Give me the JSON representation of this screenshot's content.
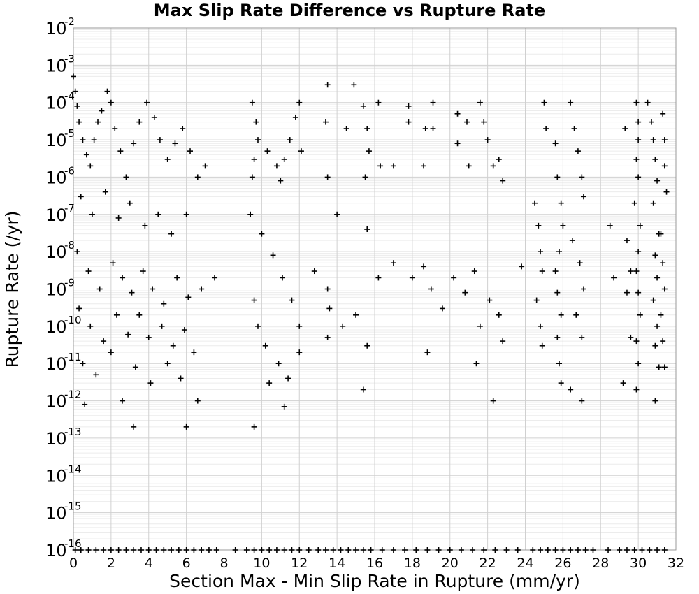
{
  "chart_data": {
    "type": "scatter",
    "title": "Max Slip Rate Difference vs Rupture Rate",
    "xlabel": "Section Max - Min Slip Rate in Rupture (mm/yr)",
    "ylabel": "Rupture Rate (/yr)",
    "xlim": [
      0,
      32
    ],
    "ylim": [
      1e-16,
      0.01
    ],
    "y_scale": "log",
    "grid": true,
    "marker": "plus",
    "marker_color": "#000000",
    "x_ticks": [
      "0",
      "2",
      "4",
      "6",
      "8",
      "10",
      "12",
      "14",
      "16",
      "18",
      "20",
      "22",
      "24",
      "26",
      "28",
      "30",
      "32"
    ],
    "y_ticks": [
      {
        "base": "10",
        "exp": "-2"
      },
      {
        "base": "10",
        "exp": "-3"
      },
      {
        "base": "10",
        "exp": "-4"
      },
      {
        "base": "10",
        "exp": "-5"
      },
      {
        "base": "10",
        "exp": "-6"
      },
      {
        "base": "10",
        "exp": "-7"
      },
      {
        "base": "10",
        "exp": "-8"
      },
      {
        "base": "10",
        "exp": "-9"
      },
      {
        "base": "10",
        "exp": "-10"
      },
      {
        "base": "10",
        "exp": "-11"
      },
      {
        "base": "10",
        "exp": "-12"
      },
      {
        "base": "10",
        "exp": "-13"
      },
      {
        "base": "10",
        "exp": "-14"
      },
      {
        "base": "10",
        "exp": "-15"
      },
      {
        "base": "10",
        "exp": "-16"
      }
    ],
    "series": [
      {
        "points": [
          [
            0.0,
            0.0005
          ],
          [
            0.1,
            0.0002
          ],
          [
            0.2,
            8e-05
          ],
          [
            0.3,
            3e-05
          ],
          [
            0.5,
            1e-05
          ],
          [
            0.7,
            4e-06
          ],
          [
            0.9,
            2e-06
          ],
          [
            1.1,
            1e-05
          ],
          [
            1.3,
            3e-05
          ],
          [
            1.5,
            6e-05
          ],
          [
            1.8,
            0.0002
          ],
          [
            2.0,
            0.0001
          ],
          [
            2.2,
            2e-05
          ],
          [
            2.5,
            5e-06
          ],
          [
            2.8,
            1e-06
          ],
          [
            3.2,
            8e-06
          ],
          [
            3.5,
            3e-05
          ],
          [
            3.9,
            0.0001
          ],
          [
            4.3,
            4e-05
          ],
          [
            4.6,
            1e-05
          ],
          [
            5.0,
            3e-06
          ],
          [
            5.4,
            8e-06
          ],
          [
            5.8,
            2e-05
          ],
          [
            6.2,
            5e-06
          ],
          [
            6.6,
            1e-06
          ],
          [
            7.0,
            2e-06
          ],
          [
            0.4,
            3e-07
          ],
          [
            1.0,
            1e-07
          ],
          [
            1.7,
            4e-07
          ],
          [
            2.4,
            8e-08
          ],
          [
            3.0,
            2e-07
          ],
          [
            3.8,
            5e-08
          ],
          [
            4.5,
            1e-07
          ],
          [
            5.2,
            3e-08
          ],
          [
            6.0,
            1e-07
          ],
          [
            0.2,
            1e-08
          ],
          [
            0.8,
            3e-09
          ],
          [
            1.4,
            1e-09
          ],
          [
            2.1,
            5e-09
          ],
          [
            2.6,
            2e-09
          ],
          [
            3.1,
            8e-10
          ],
          [
            3.7,
            3e-09
          ],
          [
            4.2,
            1e-09
          ],
          [
            4.8,
            4e-10
          ],
          [
            5.5,
            2e-09
          ],
          [
            6.1,
            6e-10
          ],
          [
            6.8,
            1e-09
          ],
          [
            7.5,
            2e-09
          ],
          [
            0.3,
            3e-10
          ],
          [
            0.9,
            1e-10
          ],
          [
            1.6,
            4e-11
          ],
          [
            2.3,
            2e-10
          ],
          [
            2.9,
            6e-11
          ],
          [
            3.5,
            2e-10
          ],
          [
            4.0,
            5e-11
          ],
          [
            4.7,
            1e-10
          ],
          [
            5.3,
            3e-11
          ],
          [
            5.9,
            8e-11
          ],
          [
            6.4,
            2e-11
          ],
          [
            0.5,
            1e-11
          ],
          [
            1.2,
            5e-12
          ],
          [
            2.0,
            2e-11
          ],
          [
            2.6,
            1e-12
          ],
          [
            3.3,
            8e-12
          ],
          [
            4.1,
            3e-12
          ],
          [
            5.0,
            1e-11
          ],
          [
            5.7,
            4e-12
          ],
          [
            6.6,
            1e-12
          ],
          [
            0.6,
            8e-13
          ],
          [
            3.2,
            2e-13
          ],
          [
            6.0,
            2e-13
          ],
          [
            9.6,
            2e-13
          ],
          [
            9.5,
            0.0001
          ],
          [
            9.7,
            3e-05
          ],
          [
            9.8,
            1e-05
          ],
          [
            9.6,
            3e-06
          ],
          [
            9.5,
            1e-06
          ],
          [
            10.3,
            5e-06
          ],
          [
            10.8,
            2e-06
          ],
          [
            11.0,
            8e-07
          ],
          [
            11.2,
            3e-06
          ],
          [
            11.5,
            1e-05
          ],
          [
            11.8,
            4e-05
          ],
          [
            12.0,
            0.0001
          ],
          [
            12.1,
            5e-06
          ],
          [
            9.4,
            1e-07
          ],
          [
            10.0,
            3e-08
          ],
          [
            10.6,
            8e-09
          ],
          [
            11.1,
            2e-09
          ],
          [
            11.6,
            5e-10
          ],
          [
            12.0,
            1e-10
          ],
          [
            9.6,
            5e-10
          ],
          [
            9.8,
            1e-10
          ],
          [
            10.2,
            3e-11
          ],
          [
            10.9,
            1e-11
          ],
          [
            11.4,
            4e-12
          ],
          [
            12.0,
            2e-11
          ],
          [
            11.2,
            7e-13
          ],
          [
            10.4,
            3e-12
          ],
          [
            13.5,
            0.0003
          ],
          [
            13.4,
            3e-05
          ],
          [
            13.5,
            1e-06
          ],
          [
            14.5,
            2e-05
          ],
          [
            14.9,
            0.0003
          ],
          [
            15.4,
            8e-05
          ],
          [
            15.6,
            2e-05
          ],
          [
            15.7,
            5e-06
          ],
          [
            15.5,
            1e-06
          ],
          [
            14.0,
            1e-07
          ],
          [
            15.6,
            4e-08
          ],
          [
            13.5,
            1e-09
          ],
          [
            13.6,
            3e-10
          ],
          [
            14.3,
            1e-10
          ],
          [
            15.0,
            2e-10
          ],
          [
            15.6,
            3e-11
          ],
          [
            15.4,
            2e-12
          ],
          [
            13.5,
            5e-11
          ],
          [
            12.8,
            3e-09
          ],
          [
            16.2,
            0.0001
          ],
          [
            16.3,
            2e-06
          ],
          [
            17.0,
            2e-06
          ],
          [
            17.8,
            8e-05
          ],
          [
            17.8,
            3e-05
          ],
          [
            18.6,
            2e-06
          ],
          [
            18.7,
            2e-05
          ],
          [
            19.1,
            0.0001
          ],
          [
            19.1,
            2e-05
          ],
          [
            20.4,
            5e-05
          ],
          [
            20.4,
            8e-06
          ],
          [
            20.9,
            3e-05
          ],
          [
            21.0,
            2e-06
          ],
          [
            21.6,
            0.0001
          ],
          [
            21.8,
            3e-05
          ],
          [
            22.0,
            1e-05
          ],
          [
            22.3,
            2e-06
          ],
          [
            22.6,
            3e-06
          ],
          [
            22.8,
            8e-07
          ],
          [
            16.2,
            2e-09
          ],
          [
            17.0,
            5e-09
          ],
          [
            18.0,
            2e-09
          ],
          [
            18.6,
            4e-09
          ],
          [
            19.0,
            1e-09
          ],
          [
            19.6,
            3e-10
          ],
          [
            20.2,
            2e-09
          ],
          [
            20.8,
            8e-10
          ],
          [
            21.3,
            3e-09
          ],
          [
            21.6,
            1e-10
          ],
          [
            22.1,
            5e-10
          ],
          [
            22.6,
            2e-10
          ],
          [
            22.8,
            4e-11
          ],
          [
            21.4,
            1e-11
          ],
          [
            22.3,
            1e-12
          ],
          [
            18.8,
            2e-11
          ],
          [
            23.8,
            4e-09
          ],
          [
            24.5,
            2e-07
          ],
          [
            24.7,
            5e-08
          ],
          [
            24.8,
            1e-08
          ],
          [
            24.9,
            3e-09
          ],
          [
            24.6,
            5e-10
          ],
          [
            24.8,
            1e-10
          ],
          [
            24.9,
            3e-11
          ],
          [
            25.0,
            0.0001
          ],
          [
            25.1,
            2e-05
          ],
          [
            25.6,
            8e-06
          ],
          [
            25.7,
            1e-06
          ],
          [
            25.9,
            2e-07
          ],
          [
            26.0,
            5e-08
          ],
          [
            25.8,
            1e-08
          ],
          [
            25.6,
            3e-09
          ],
          [
            25.7,
            8e-10
          ],
          [
            25.9,
            2e-10
          ],
          [
            25.7,
            5e-11
          ],
          [
            25.8,
            1e-11
          ],
          [
            25.9,
            3e-12
          ],
          [
            26.4,
            0.0001
          ],
          [
            26.6,
            2e-05
          ],
          [
            26.8,
            5e-06
          ],
          [
            27.0,
            1e-06
          ],
          [
            27.1,
            3e-07
          ],
          [
            26.5,
            2e-08
          ],
          [
            26.9,
            5e-09
          ],
          [
            27.1,
            1e-09
          ],
          [
            26.7,
            2e-10
          ],
          [
            27.0,
            5e-11
          ],
          [
            26.4,
            2e-12
          ],
          [
            27.0,
            1e-12
          ],
          [
            28.5,
            5e-08
          ],
          [
            28.7,
            2e-09
          ],
          [
            29.3,
            2e-05
          ],
          [
            29.4,
            2e-08
          ],
          [
            29.6,
            3e-09
          ],
          [
            29.4,
            8e-10
          ],
          [
            29.6,
            5e-11
          ],
          [
            29.2,
            3e-12
          ],
          [
            29.9,
            0.0001
          ],
          [
            30.0,
            3e-05
          ],
          [
            30.0,
            1e-05
          ],
          [
            29.9,
            3e-06
          ],
          [
            30.0,
            1e-06
          ],
          [
            29.8,
            2e-07
          ],
          [
            30.1,
            5e-08
          ],
          [
            30.0,
            1e-08
          ],
          [
            29.9,
            3e-09
          ],
          [
            30.0,
            8e-10
          ],
          [
            30.1,
            2e-10
          ],
          [
            29.9,
            4e-11
          ],
          [
            30.0,
            1e-11
          ],
          [
            29.9,
            2e-12
          ],
          [
            30.5,
            0.0001
          ],
          [
            30.7,
            3e-05
          ],
          [
            30.8,
            1e-05
          ],
          [
            30.9,
            3e-06
          ],
          [
            31.0,
            8e-07
          ],
          [
            30.8,
            2e-07
          ],
          [
            31.1,
            3e-08
          ],
          [
            30.9,
            8e-09
          ],
          [
            31.0,
            2e-09
          ],
          [
            30.8,
            5e-10
          ],
          [
            31.0,
            1e-10
          ],
          [
            30.9,
            3e-11
          ],
          [
            31.1,
            8e-12
          ],
          [
            30.9,
            1e-12
          ],
          [
            31.3,
            5e-05
          ],
          [
            31.4,
            1e-05
          ],
          [
            31.4,
            2e-06
          ],
          [
            31.5,
            4e-07
          ],
          [
            31.2,
            3e-08
          ],
          [
            31.3,
            5e-09
          ],
          [
            31.4,
            1e-09
          ],
          [
            31.2,
            2e-10
          ],
          [
            31.3,
            4e-11
          ],
          [
            31.4,
            8e-12
          ]
        ]
      },
      {
        "points": [
          [
            0.1,
            1e-16
          ],
          [
            0.4,
            1e-16
          ],
          [
            0.8,
            1e-16
          ],
          [
            1.2,
            1e-16
          ],
          [
            1.6,
            1e-16
          ],
          [
            2.0,
            1e-16
          ],
          [
            2.4,
            1e-16
          ],
          [
            2.8,
            1e-16
          ],
          [
            3.2,
            1e-16
          ],
          [
            3.6,
            1e-16
          ],
          [
            4.0,
            1e-16
          ],
          [
            4.4,
            1e-16
          ],
          [
            4.8,
            1e-16
          ],
          [
            5.2,
            1e-16
          ],
          [
            5.6,
            1e-16
          ],
          [
            6.0,
            1e-16
          ],
          [
            6.4,
            1e-16
          ],
          [
            6.8,
            1e-16
          ],
          [
            7.2,
            1e-16
          ],
          [
            7.6,
            1e-16
          ],
          [
            8.6,
            1e-16
          ],
          [
            9.2,
            1e-16
          ],
          [
            9.6,
            1e-16
          ],
          [
            10.0,
            1e-16
          ],
          [
            10.4,
            1e-16
          ],
          [
            10.8,
            1e-16
          ],
          [
            11.2,
            1e-16
          ],
          [
            11.6,
            1e-16
          ],
          [
            12.0,
            1e-16
          ],
          [
            12.5,
            1e-16
          ],
          [
            13.0,
            1e-16
          ],
          [
            13.4,
            1e-16
          ],
          [
            13.8,
            1e-16
          ],
          [
            14.2,
            1e-16
          ],
          [
            14.6,
            1e-16
          ],
          [
            15.0,
            1e-16
          ],
          [
            15.4,
            1e-16
          ],
          [
            15.8,
            1e-16
          ],
          [
            16.4,
            1e-16
          ],
          [
            17.0,
            1e-16
          ],
          [
            17.6,
            1e-16
          ],
          [
            18.2,
            1e-16
          ],
          [
            18.8,
            1e-16
          ],
          [
            19.4,
            1e-16
          ],
          [
            20.0,
            1e-16
          ],
          [
            20.6,
            1e-16
          ],
          [
            21.2,
            1e-16
          ],
          [
            21.8,
            1e-16
          ],
          [
            22.4,
            1e-16
          ],
          [
            23.0,
            1e-16
          ],
          [
            23.6,
            1e-16
          ],
          [
            24.4,
            1e-16
          ],
          [
            24.8,
            1e-16
          ],
          [
            25.2,
            1e-16
          ],
          [
            25.6,
            1e-16
          ],
          [
            26.0,
            1e-16
          ],
          [
            26.4,
            1e-16
          ],
          [
            26.8,
            1e-16
          ],
          [
            27.2,
            1e-16
          ],
          [
            27.6,
            1e-16
          ],
          [
            28.4,
            1e-16
          ],
          [
            29.0,
            1e-16
          ],
          [
            29.4,
            1e-16
          ],
          [
            29.8,
            1e-16
          ],
          [
            30.2,
            1e-16
          ],
          [
            30.6,
            1e-16
          ],
          [
            31.0,
            1e-16
          ],
          [
            31.4,
            1e-16
          ]
        ]
      }
    ]
  }
}
